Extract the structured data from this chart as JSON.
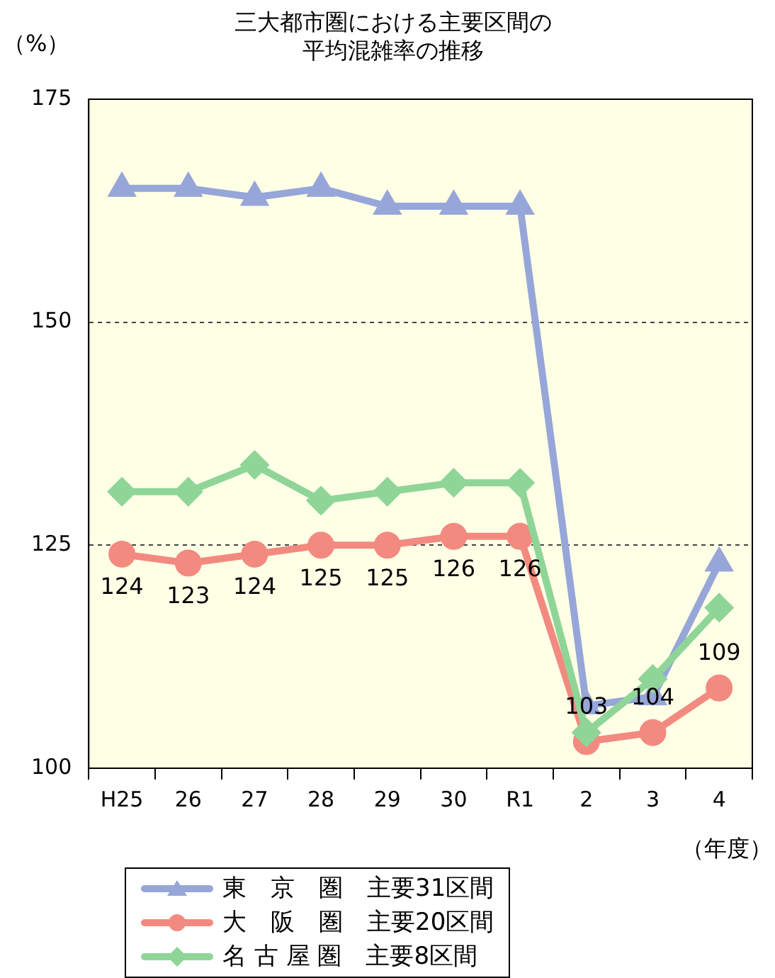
{
  "chart_data": {
    "type": "line",
    "title": "三大都市圏における主要区間の平均混雑率の推移",
    "ylabel": "（%）",
    "xlabel": "（年度）",
    "categories": [
      "H25",
      "26",
      "27",
      "28",
      "29",
      "30",
      "R1",
      "2",
      "3",
      "4"
    ],
    "ylim": [
      100,
      175
    ],
    "yticks": [
      100,
      125,
      150,
      175
    ],
    "grid": "y",
    "legend": "bottom",
    "series": [
      {
        "name": "東　京　圏　主要31区間",
        "color": "#97a6d8",
        "marker": "triangle",
        "values": [
          165,
          165,
          164,
          165,
          163,
          163,
          163,
          107,
          108,
          123
        ]
      },
      {
        "name": "大　阪　圏　主要20区間",
        "color": "#f28a80",
        "marker": "circle",
        "values": [
          124,
          123,
          124,
          125,
          125,
          126,
          126,
          103,
          104,
          109
        ],
        "value_labels": [
          "124",
          "123",
          "124",
          "125",
          "125",
          "126",
          "126",
          "103",
          "104",
          "109"
        ]
      },
      {
        "name": "名 古 屋 圏　主要8区間",
        "color": "#8fd598",
        "marker": "diamond",
        "values": [
          131,
          131,
          134,
          130,
          131,
          132,
          132,
          104,
          110,
          118
        ]
      }
    ]
  }
}
